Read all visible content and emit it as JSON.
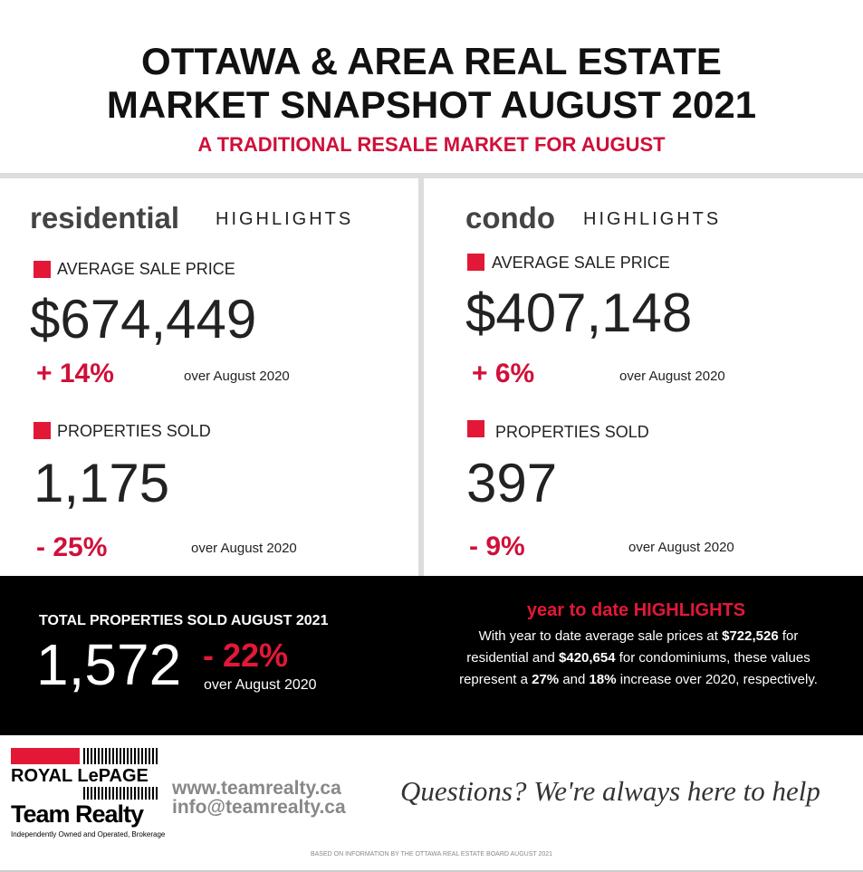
{
  "header": {
    "title_line1": "OTTAWA & AREA REAL ESTATE",
    "title_line2": "MARKET SNAPSHOT AUGUST 2021",
    "subtitle": "A TRADITIONAL RESALE MARKET FOR AUGUST"
  },
  "residential": {
    "label": "residential",
    "suffix": "HIGHLIGHTS",
    "avg_label": "AVERAGE SALE PRICE",
    "avg_price": "$674,449",
    "avg_change": "+ 14%",
    "avg_compare": "over August 2020",
    "sold_label": "PROPERTIES SOLD",
    "sold": "1,175",
    "sold_change": "- 25%",
    "sold_compare": "over August 2020"
  },
  "condo": {
    "label": "condo",
    "suffix": "HIGHLIGHTS",
    "avg_label": "AVERAGE SALE PRICE",
    "avg_price": "$407,148",
    "avg_change": "+ 6%",
    "avg_compare": "over August 2020",
    "sold_label": "PROPERTIES SOLD",
    "sold": "397",
    "sold_change": "- 9%",
    "sold_compare": "over August 2020"
  },
  "total": {
    "label": "TOTAL PROPERTIES SOLD AUGUST 2021",
    "value": "1,572",
    "change": "- 22%",
    "compare": "over August 2020"
  },
  "ytd": {
    "heading_lead": "year to date",
    "heading_main": "HIGHLIGHTS",
    "segments": [
      "With year to date average sale prices at ",
      "$722,526",
      " for residential and ",
      "$420,654",
      " for condominiums, these values represent a ",
      "27%",
      " and ",
      "18%",
      " increase over 2020, respectively."
    ]
  },
  "footer": {
    "brand_line1": "ROYAL LePAGE",
    "brand_line2": "Team Realty",
    "brand_note": "Independently Owned and Operated, Brokerage",
    "website": "www.teamrealty.ca",
    "email": "info@teamrealty.ca",
    "slogan": "Questions? We're always here to help",
    "source": "BASED ON INFORMATION BY THE OTTAWA REAL ESTATE BOARD AUGUST 2021"
  }
}
